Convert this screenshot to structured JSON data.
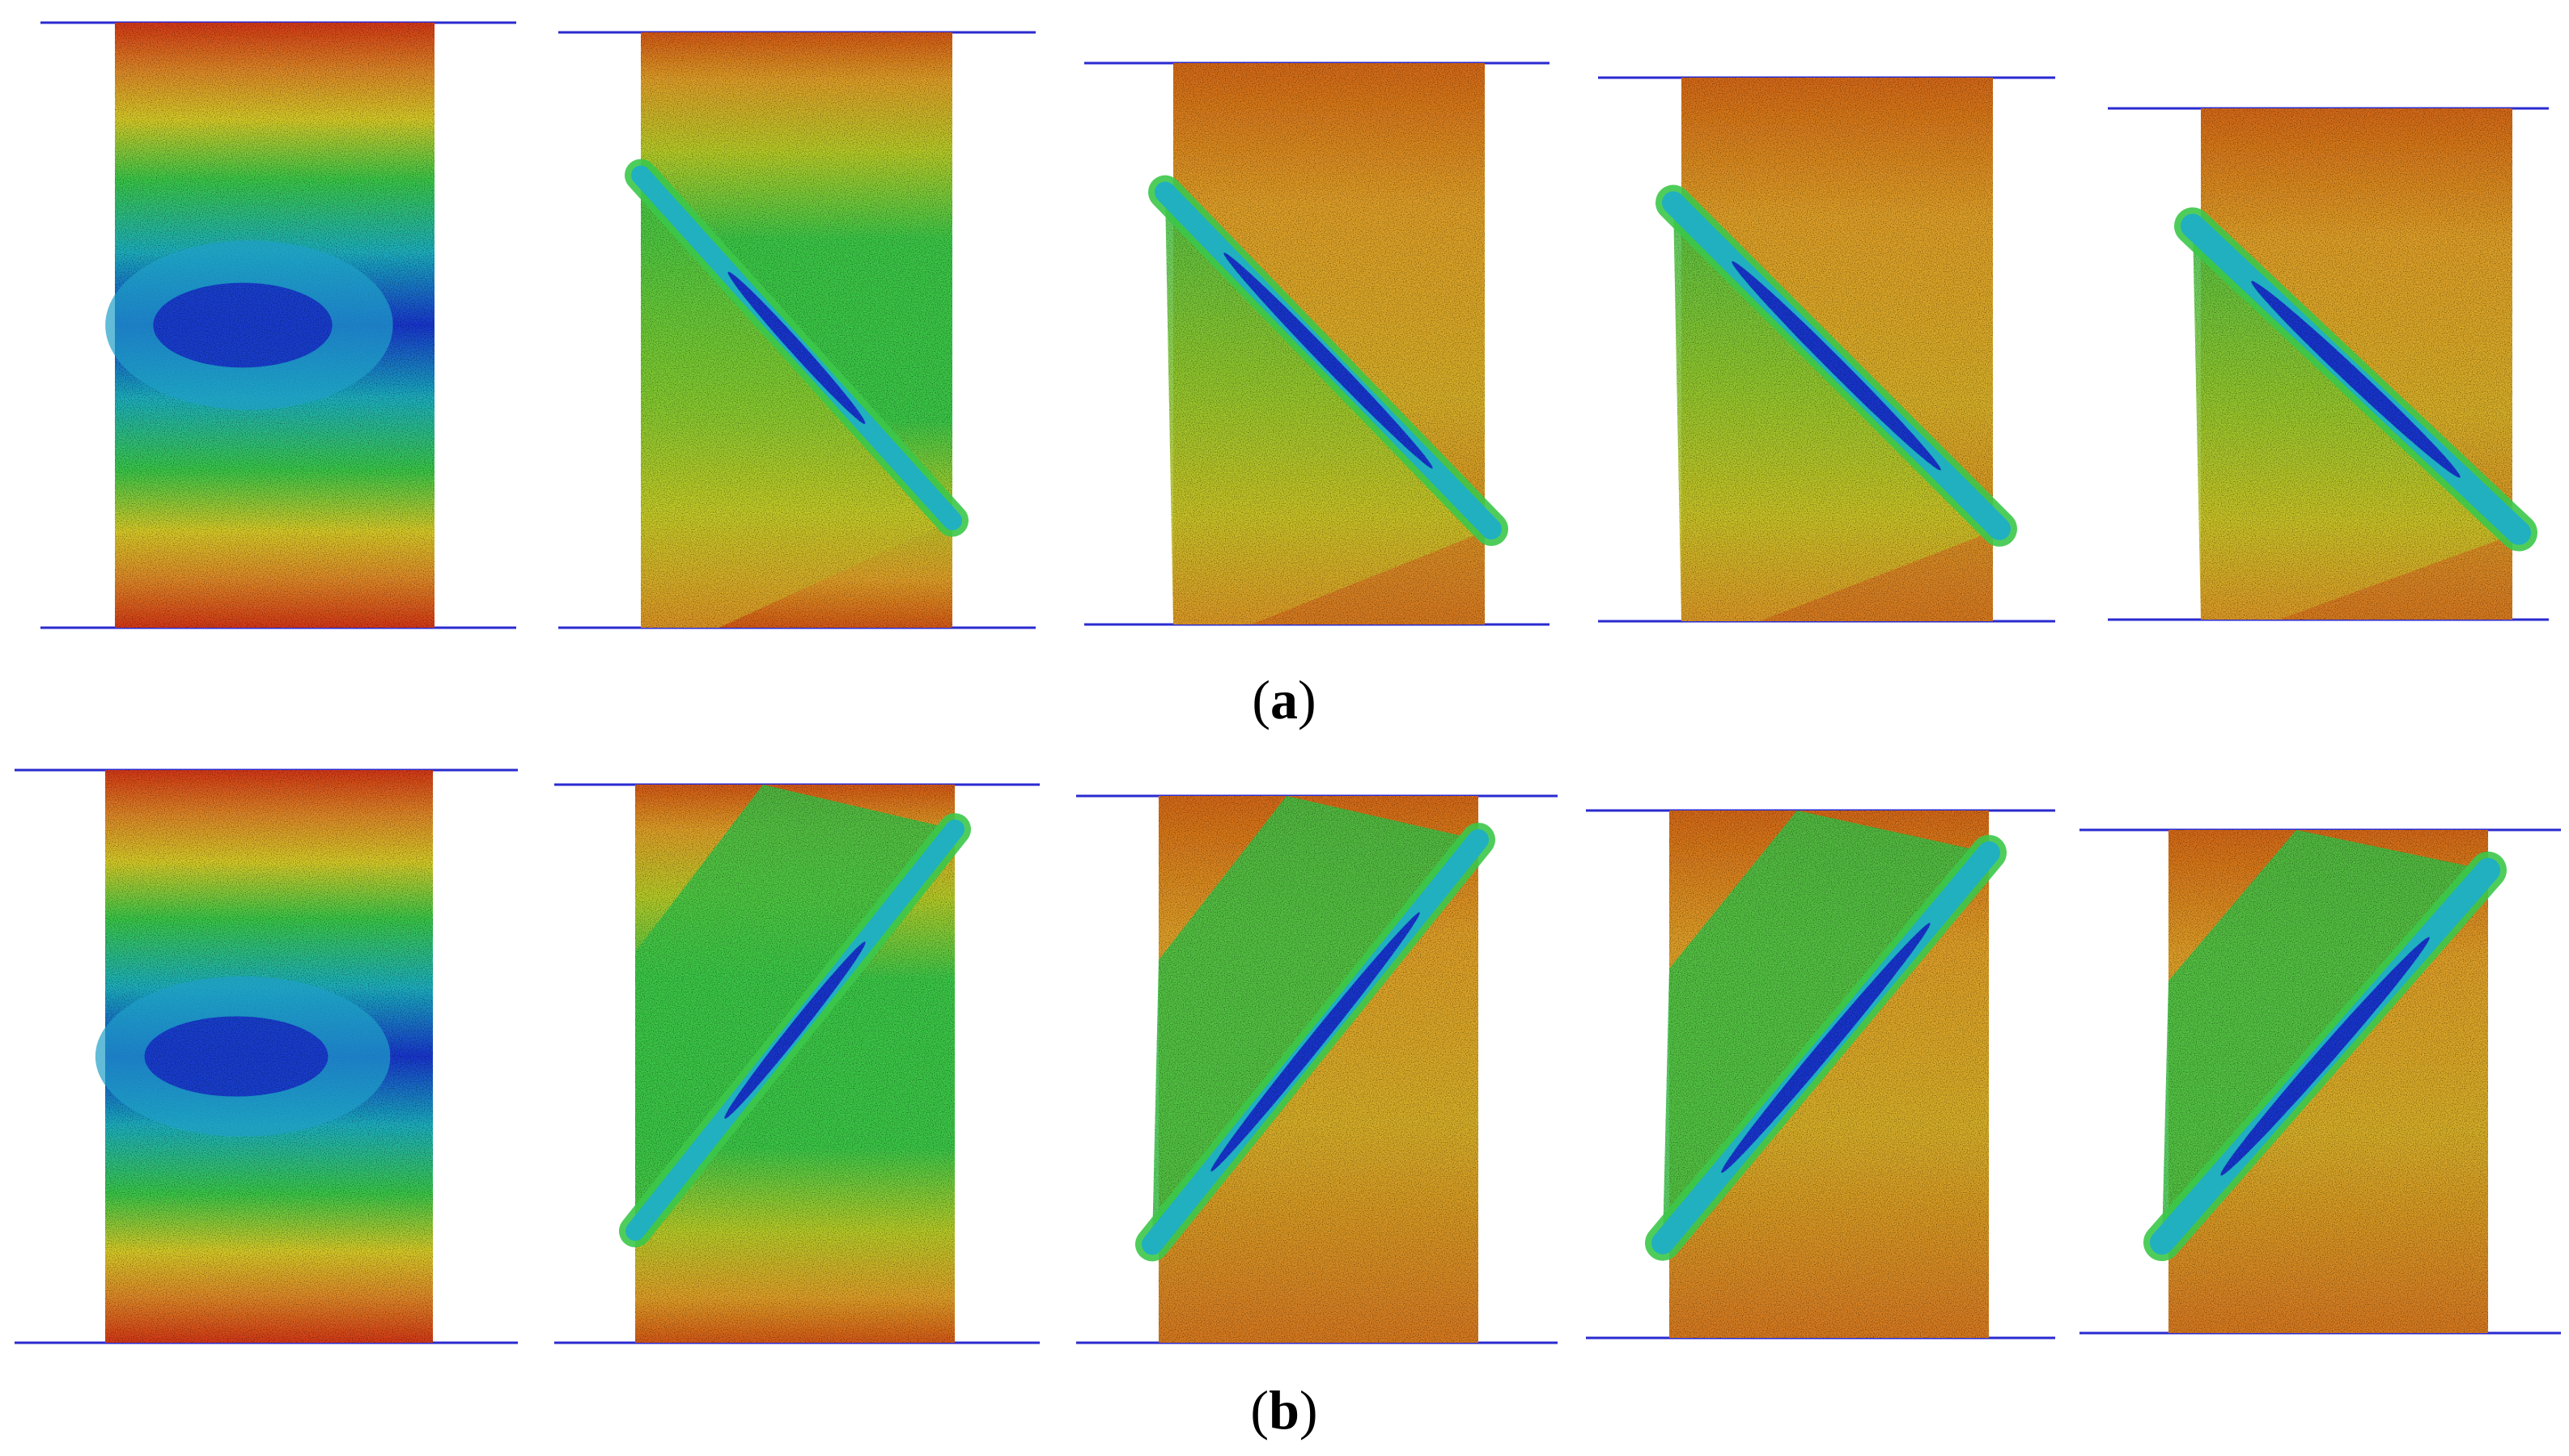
{
  "figure": {
    "rows": [
      {
        "label_open": "(",
        "label_letter": "a",
        "label_close": ")",
        "band_direction": "down-right",
        "specimens": [
          {
            "stage": "initial",
            "band": null
          },
          {
            "stage": "band-forming",
            "band": "diagonal"
          },
          {
            "stage": "band-developed",
            "band": "diagonal"
          },
          {
            "stage": "sliding",
            "band": "diagonal"
          },
          {
            "stage": "large-slip",
            "band": "diagonal"
          }
        ]
      },
      {
        "label_open": "(",
        "label_letter": "b",
        "label_close": ")",
        "band_direction": "up-right",
        "specimens": [
          {
            "stage": "initial",
            "band": null
          },
          {
            "stage": "band-forming",
            "band": "diagonal"
          },
          {
            "stage": "band-developed",
            "band": "diagonal"
          },
          {
            "stage": "sliding",
            "band": "diagonal"
          },
          {
            "stage": "large-slip",
            "band": "diagonal"
          }
        ]
      }
    ],
    "colors": {
      "platen_line": "#2a2ad0",
      "red": "#d63a1a",
      "orange": "#e08a2a",
      "yellow": "#d8cc2a",
      "green": "#3cc84a",
      "cyan": "#20b0c0",
      "blue": "#1a38d0",
      "background": "#ffffff"
    }
  }
}
